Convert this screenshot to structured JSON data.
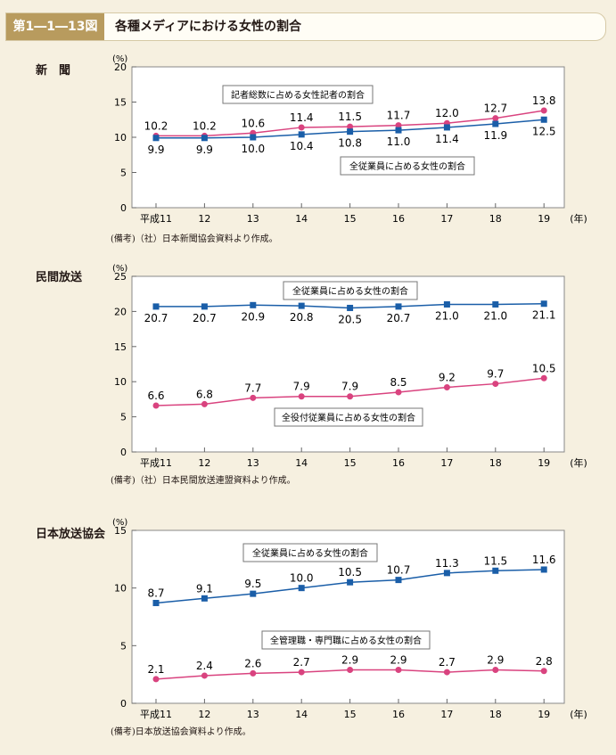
{
  "header": {
    "figure_no": "第1―1―13図",
    "title": "各種メディアにおける女性の割合"
  },
  "colors": {
    "blue": "#1a5ea8",
    "pink": "#d9437f",
    "plot_bg": "#ffffff",
    "axis": "#555555"
  },
  "chart_data": [
    {
      "type": "line",
      "section_label": "新　聞",
      "unit_label": "(%)",
      "x_unit": "(年)",
      "categories": [
        "平成11",
        "12",
        "13",
        "14",
        "15",
        "16",
        "17",
        "18",
        "19"
      ],
      "ylim": [
        0,
        20
      ],
      "yticks": [
        0,
        5,
        10,
        15,
        20
      ],
      "grid": false,
      "series": [
        {
          "name": "記者総数に占める女性記者の割合",
          "color": "pink",
          "marker": "circle",
          "values": [
            10.2,
            10.2,
            10.6,
            11.4,
            11.5,
            11.7,
            12.0,
            12.7,
            13.8
          ],
          "labels": [
            "10.2",
            "10.2",
            "10.6",
            "11.4",
            "11.5",
            "11.7",
            "12.0",
            "12.7",
            "13.8"
          ],
          "label_pos": "above"
        },
        {
          "name": "全従業員に占める女性の割合",
          "color": "blue",
          "marker": "square",
          "values": [
            9.9,
            9.9,
            10.0,
            10.4,
            10.8,
            11.0,
            11.4,
            11.9,
            12.5
          ],
          "labels": [
            "9.9",
            "9.9",
            "10.0",
            "10.4",
            "10.8",
            "11.0",
            "11.4",
            "11.9",
            "12.5"
          ],
          "label_pos": "below"
        }
      ],
      "note": "(備考)（社）日本新聞協会資料より作成。"
    },
    {
      "type": "line",
      "section_label": "民間放送",
      "unit_label": "(%)",
      "x_unit": "(年)",
      "categories": [
        "平成11",
        "12",
        "13",
        "14",
        "15",
        "16",
        "17",
        "18",
        "19"
      ],
      "ylim": [
        0,
        25
      ],
      "yticks": [
        0,
        5,
        10,
        15,
        20,
        25
      ],
      "grid": false,
      "series": [
        {
          "name": "全従業員に占める女性の割合",
          "color": "blue",
          "marker": "square",
          "values": [
            20.7,
            20.7,
            20.9,
            20.8,
            20.5,
            20.7,
            21.0,
            21.0,
            21.1
          ],
          "labels": [
            "20.7",
            "20.7",
            "20.9",
            "20.8",
            "20.5",
            "20.7",
            "21.0",
            "21.0",
            "21.1"
          ],
          "label_pos": "below"
        },
        {
          "name": "全役付従業員に占める女性の割合",
          "color": "pink",
          "marker": "circle",
          "values": [
            6.6,
            6.8,
            7.7,
            7.9,
            7.9,
            8.5,
            9.2,
            9.7,
            10.5
          ],
          "labels": [
            "6.6",
            "6.8",
            "7.7",
            "7.9",
            "7.9",
            "8.5",
            "9.2",
            "9.7",
            "10.5"
          ],
          "label_pos": "above"
        }
      ],
      "note": "(備考)（社）日本民間放送連盟資料より作成。"
    },
    {
      "type": "line",
      "section_label": "日本放送協会",
      "unit_label": "(%)",
      "x_unit": "(年)",
      "categories": [
        "平成11",
        "12",
        "13",
        "14",
        "15",
        "16",
        "17",
        "18",
        "19"
      ],
      "ylim": [
        0,
        15
      ],
      "yticks": [
        0,
        5,
        10,
        15
      ],
      "grid": false,
      "series": [
        {
          "name": "全従業員に占める女性の割合",
          "color": "blue",
          "marker": "square",
          "values": [
            8.7,
            9.1,
            9.5,
            10.0,
            10.5,
            10.7,
            11.3,
            11.5,
            11.6
          ],
          "labels": [
            "8.7",
            "9.1",
            "9.5",
            "10.0",
            "10.5",
            "10.7",
            "11.3",
            "11.5",
            "11.6"
          ],
          "label_pos": "above"
        },
        {
          "name": "全管理職・専門職に占める女性の割合",
          "color": "pink",
          "marker": "circle",
          "values": [
            2.1,
            2.4,
            2.6,
            2.7,
            2.9,
            2.9,
            2.7,
            2.9,
            2.8
          ],
          "labels": [
            "2.1",
            "2.4",
            "2.6",
            "2.7",
            "2.9",
            "2.9",
            "2.7",
            "2.9",
            "2.8"
          ],
          "label_pos": "above"
        }
      ],
      "note": "(備考)日本放送協会資料より作成。"
    }
  ]
}
